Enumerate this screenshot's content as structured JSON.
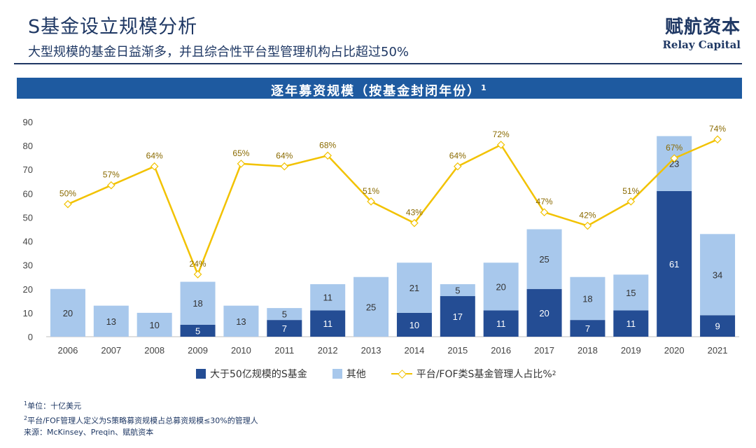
{
  "header": {
    "title": "S基金设立规模分析",
    "subtitle": "大型规模的基金日益渐多，并且综合性平台型管理机构占比超过50%",
    "brand_cn": "赋航资本",
    "brand_en": "Relay Capital"
  },
  "banner": {
    "text": "逐年募资规模（按基金封闭年份）",
    "sup": "1"
  },
  "chart_data": {
    "type": "bar",
    "stacked": true,
    "categories": [
      "2006",
      "2007",
      "2008",
      "2009",
      "2010",
      "2011",
      "2012",
      "2013",
      "2014",
      "2015",
      "2016",
      "2017",
      "2018",
      "2019",
      "2020",
      "2021"
    ],
    "series": [
      {
        "name": "大于50亿规模的S基金",
        "color": "#244d94",
        "values": [
          0,
          0,
          0,
          5,
          0,
          7,
          11,
          0,
          10,
          17,
          11,
          20,
          7,
          11,
          61,
          9
        ]
      },
      {
        "name": "其他",
        "color": "#a8c8ec",
        "values": [
          20,
          13,
          10,
          18,
          13,
          5,
          11,
          25,
          21,
          5,
          20,
          25,
          18,
          15,
          23,
          34
        ]
      }
    ],
    "line_series": {
      "name": "平台/FOF类S基金管理人占比%",
      "name_sup": "2",
      "color": "#f2c200",
      "labels": [
        "50%",
        "57%",
        "64%",
        "24%",
        "65%",
        "64%",
        "68%",
        "51%",
        "43%",
        "64%",
        "72%",
        "47%",
        "42%",
        "51%",
        "67%",
        "74%"
      ]
    },
    "ylim": [
      0,
      90
    ],
    "yticks": [
      0,
      10,
      20,
      30,
      40,
      50,
      60,
      70,
      80,
      90
    ],
    "xlabel": "",
    "ylabel": "",
    "legend": "bottom"
  },
  "footnotes": [
    {
      "sup": "1",
      "text": "单位：十亿美元"
    },
    {
      "sup": "2",
      "text": "平台/FOF管理人定义为S策略募资规模占总募资规模≤30%的管理人"
    },
    {
      "sup": "",
      "text": "来源：McKinsey、Preqin、赋航资本"
    }
  ]
}
